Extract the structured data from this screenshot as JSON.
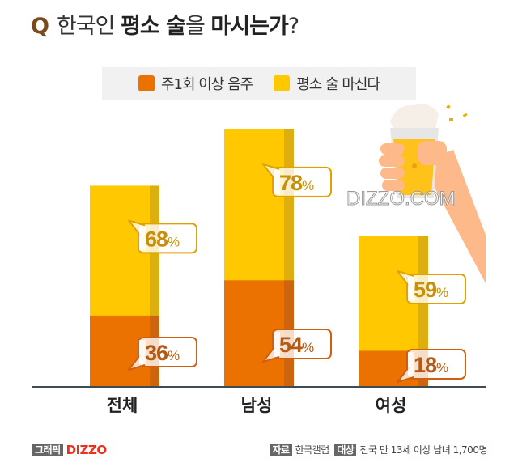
{
  "title": {
    "q": "Q",
    "part1": "한국인 ",
    "bold1": "평소 술",
    "part2": "을 ",
    "bold2": "마시는가",
    "part3": "?"
  },
  "watermark": "DIZZO.COM",
  "footer": {
    "graphic_tag": "그래픽",
    "brand": "DIZZO",
    "source_tag": "자료",
    "source": "한국갤럽",
    "target_tag": "대상",
    "target": "전국 만 13세 이상 남녀 1,700명"
  },
  "chart_data": {
    "type": "bar",
    "categories": [
      "전체",
      "남성",
      "여성"
    ],
    "series": [
      {
        "name": "주1회 이상 음주",
        "values": [
          36,
          54,
          18
        ],
        "color": "#ec7200",
        "shade": "#cc6410"
      },
      {
        "name": "평소 술 마신다",
        "values": [
          68,
          78,
          59
        ],
        "color": "#ffc800",
        "shade": "#dcae10"
      }
    ],
    "unit": "%",
    "legend": "top",
    "grid": false
  }
}
